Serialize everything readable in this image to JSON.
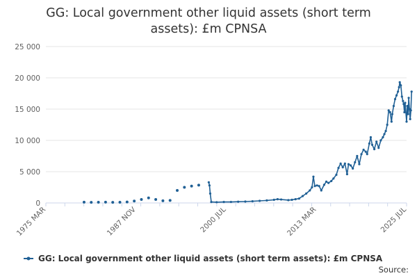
{
  "chart_data": {
    "type": "line",
    "title_lines": [
      "GG: Local government other liquid assets (short term",
      "assets): £m CPNSA"
    ],
    "y_ticks": [
      "0",
      "5 000",
      "10 000",
      "15 000",
      "20 000",
      "25 000"
    ],
    "ylim": [
      0,
      25000
    ],
    "x_ticks": [
      "1975 MAR",
      "1987 NOV",
      "2000 JUL",
      "2013 MAR",
      "2025 JUL"
    ],
    "xlim": [
      1975.17,
      2025.5
    ],
    "grid": "horizontal",
    "legend_position": "bottom",
    "series": [
      {
        "name": "GG: Local government other liquid assets (short term assets): £m CPNSA",
        "color": "#206095",
        "annual_points": [
          [
            1980.5,
            120
          ],
          [
            1981.5,
            100
          ],
          [
            1982.5,
            110
          ],
          [
            1983.5,
            120
          ],
          [
            1984.5,
            100
          ],
          [
            1985.5,
            110
          ],
          [
            1986.5,
            150
          ],
          [
            1987.5,
            300
          ],
          [
            1988.5,
            550
          ],
          [
            1989.5,
            800
          ],
          [
            1990.5,
            550
          ],
          [
            1991.5,
            350
          ],
          [
            1992.5,
            400
          ],
          [
            1993.5,
            2000
          ],
          [
            1994.5,
            2500
          ],
          [
            1995.5,
            2700
          ],
          [
            1996.5,
            2850
          ]
        ],
        "values": [
          [
            1997.9,
            3300
          ],
          [
            1998.0,
            2800
          ],
          [
            1998.1,
            1500
          ],
          [
            1998.25,
            150
          ],
          [
            1999.0,
            120
          ],
          [
            2000.0,
            150
          ],
          [
            2001.0,
            160
          ],
          [
            2002.0,
            200
          ],
          [
            2003.0,
            220
          ],
          [
            2004.0,
            270
          ],
          [
            2005.0,
            330
          ],
          [
            2006.0,
            400
          ],
          [
            2007.0,
            500
          ],
          [
            2007.5,
            600
          ],
          [
            2008.0,
            550
          ],
          [
            2009.0,
            450
          ],
          [
            2009.5,
            500
          ],
          [
            2010.0,
            600
          ],
          [
            2010.5,
            700
          ],
          [
            2011.0,
            1100
          ],
          [
            2011.5,
            1500
          ],
          [
            2012.0,
            2000
          ],
          [
            2012.3,
            2500
          ],
          [
            2012.5,
            4200
          ],
          [
            2012.7,
            2700
          ],
          [
            2013.0,
            2800
          ],
          [
            2013.3,
            2700
          ],
          [
            2013.6,
            2000
          ],
          [
            2014.0,
            2900
          ],
          [
            2014.3,
            3400
          ],
          [
            2014.6,
            3200
          ],
          [
            2015.0,
            3500
          ],
          [
            2015.3,
            3900
          ],
          [
            2015.7,
            4500
          ],
          [
            2016.0,
            5600
          ],
          [
            2016.3,
            6300
          ],
          [
            2016.6,
            5700
          ],
          [
            2016.9,
            6300
          ],
          [
            2017.2,
            4600
          ],
          [
            2017.4,
            6200
          ],
          [
            2017.7,
            6000
          ],
          [
            2018.0,
            5500
          ],
          [
            2018.3,
            6500
          ],
          [
            2018.6,
            7500
          ],
          [
            2018.9,
            6200
          ],
          [
            2019.2,
            7800
          ],
          [
            2019.5,
            8500
          ],
          [
            2019.8,
            8200
          ],
          [
            2020.0,
            7800
          ],
          [
            2020.3,
            9500
          ],
          [
            2020.5,
            10500
          ],
          [
            2020.7,
            9300
          ],
          [
            2021.0,
            8600
          ],
          [
            2021.3,
            9800
          ],
          [
            2021.6,
            8800
          ],
          [
            2021.9,
            10000
          ],
          [
            2022.2,
            10500
          ],
          [
            2022.4,
            11000
          ],
          [
            2022.6,
            11500
          ],
          [
            2022.8,
            12500
          ],
          [
            2023.0,
            14800
          ],
          [
            2023.2,
            14500
          ],
          [
            2023.4,
            13000
          ],
          [
            2023.5,
            14200
          ],
          [
            2023.7,
            15500
          ],
          [
            2023.9,
            16600
          ],
          [
            2024.1,
            17200
          ],
          [
            2024.3,
            17800
          ],
          [
            2024.45,
            18500
          ],
          [
            2024.55,
            19300
          ],
          [
            2024.7,
            18800
          ],
          [
            2024.85,
            17000
          ],
          [
            2025.0,
            16300
          ],
          [
            2025.1,
            15800
          ],
          [
            2025.2,
            14500
          ],
          [
            2025.3,
            16000
          ],
          [
            2025.5,
            13000
          ],
          [
            2025.6,
            15500
          ],
          [
            2025.7,
            14200
          ],
          [
            2025.8,
            16800
          ],
          [
            2025.9,
            15000
          ],
          [
            2026.0,
            13400
          ],
          [
            2026.1,
            14800
          ],
          [
            2026.2,
            17800
          ]
        ]
      }
    ]
  },
  "legend": {
    "label": "GG: Local government other liquid assets (short term assets): £m CPNSA"
  },
  "source": {
    "label": "Source:"
  }
}
